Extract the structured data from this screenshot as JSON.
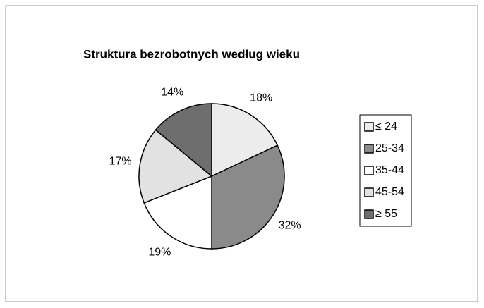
{
  "chart_data": {
    "type": "pie",
    "title": "Struktura bezrobotnych według wieku",
    "categories": [
      "≤ 24",
      "25-34",
      "35-44",
      "45-54",
      "≥ 55"
    ],
    "values": [
      18,
      32,
      19,
      17,
      14
    ],
    "value_labels": [
      "18%",
      "32%",
      "19%",
      "17%",
      "14%"
    ],
    "colors": [
      "#ececec",
      "#8a8a8a",
      "#ffffff",
      "#e2e2e2",
      "#6e6e6e"
    ],
    "legend": "right"
  }
}
